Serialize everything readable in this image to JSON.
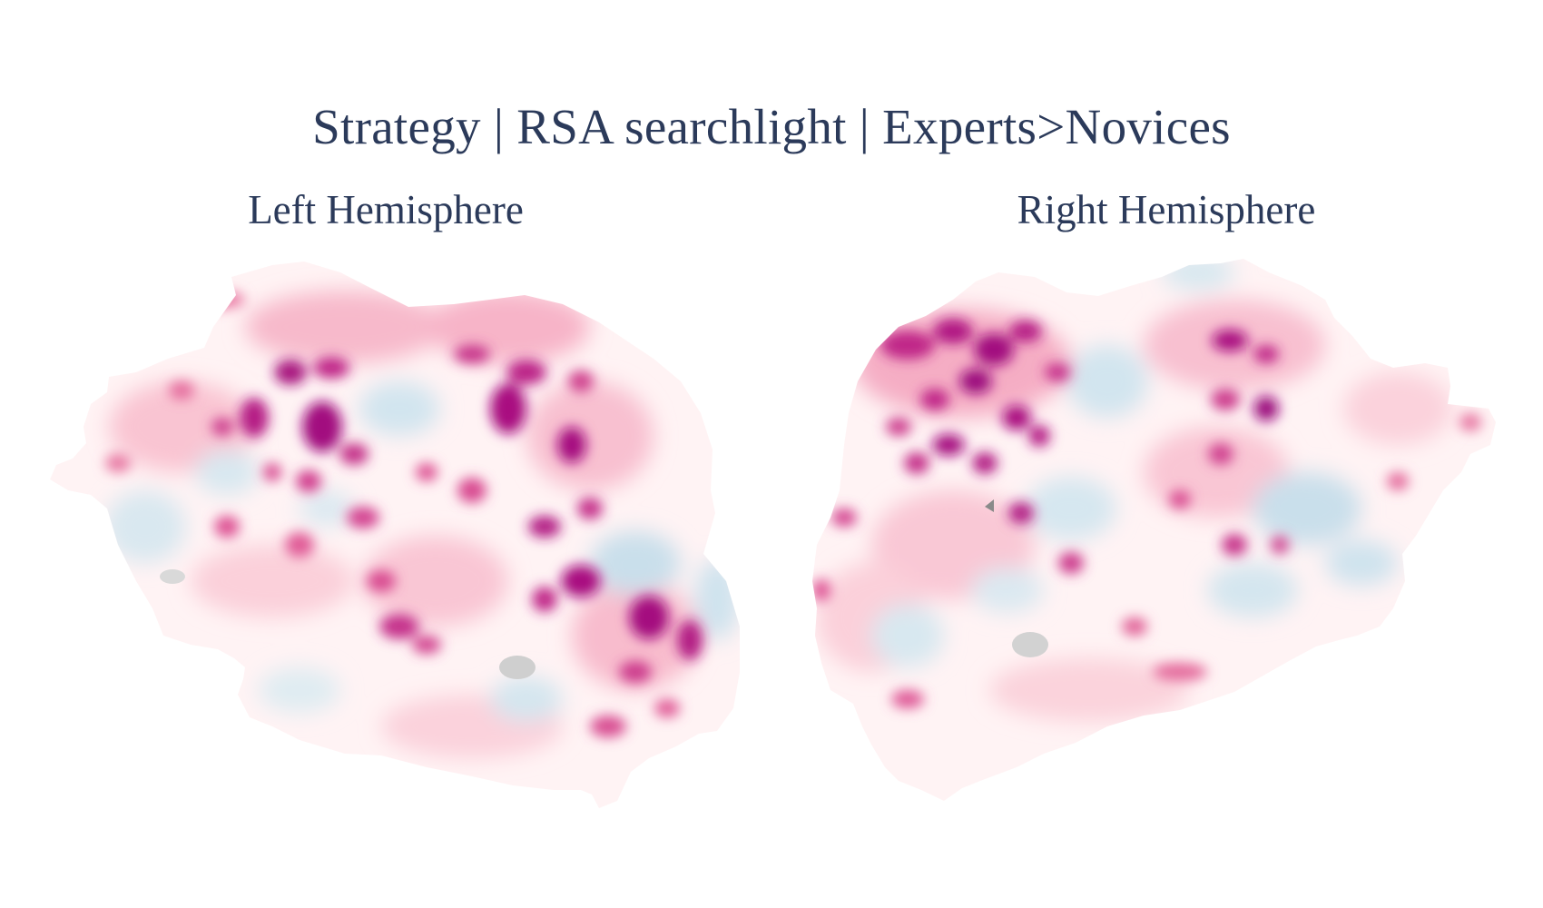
{
  "figure": {
    "title": "Strategy | RSA searchlight | Experts>Novices",
    "panels": [
      {
        "title": "Left Hemisphere"
      },
      {
        "title": "Right Hemisphere"
      }
    ],
    "colormap": {
      "positive_strong": "#9c0b7e",
      "positive_mid": "#e0508f",
      "positive_weak": "#fbd3dc",
      "neutral": "#fff6f6",
      "negative": "#bcd8e6",
      "missing": "#cfcfcf"
    }
  }
}
